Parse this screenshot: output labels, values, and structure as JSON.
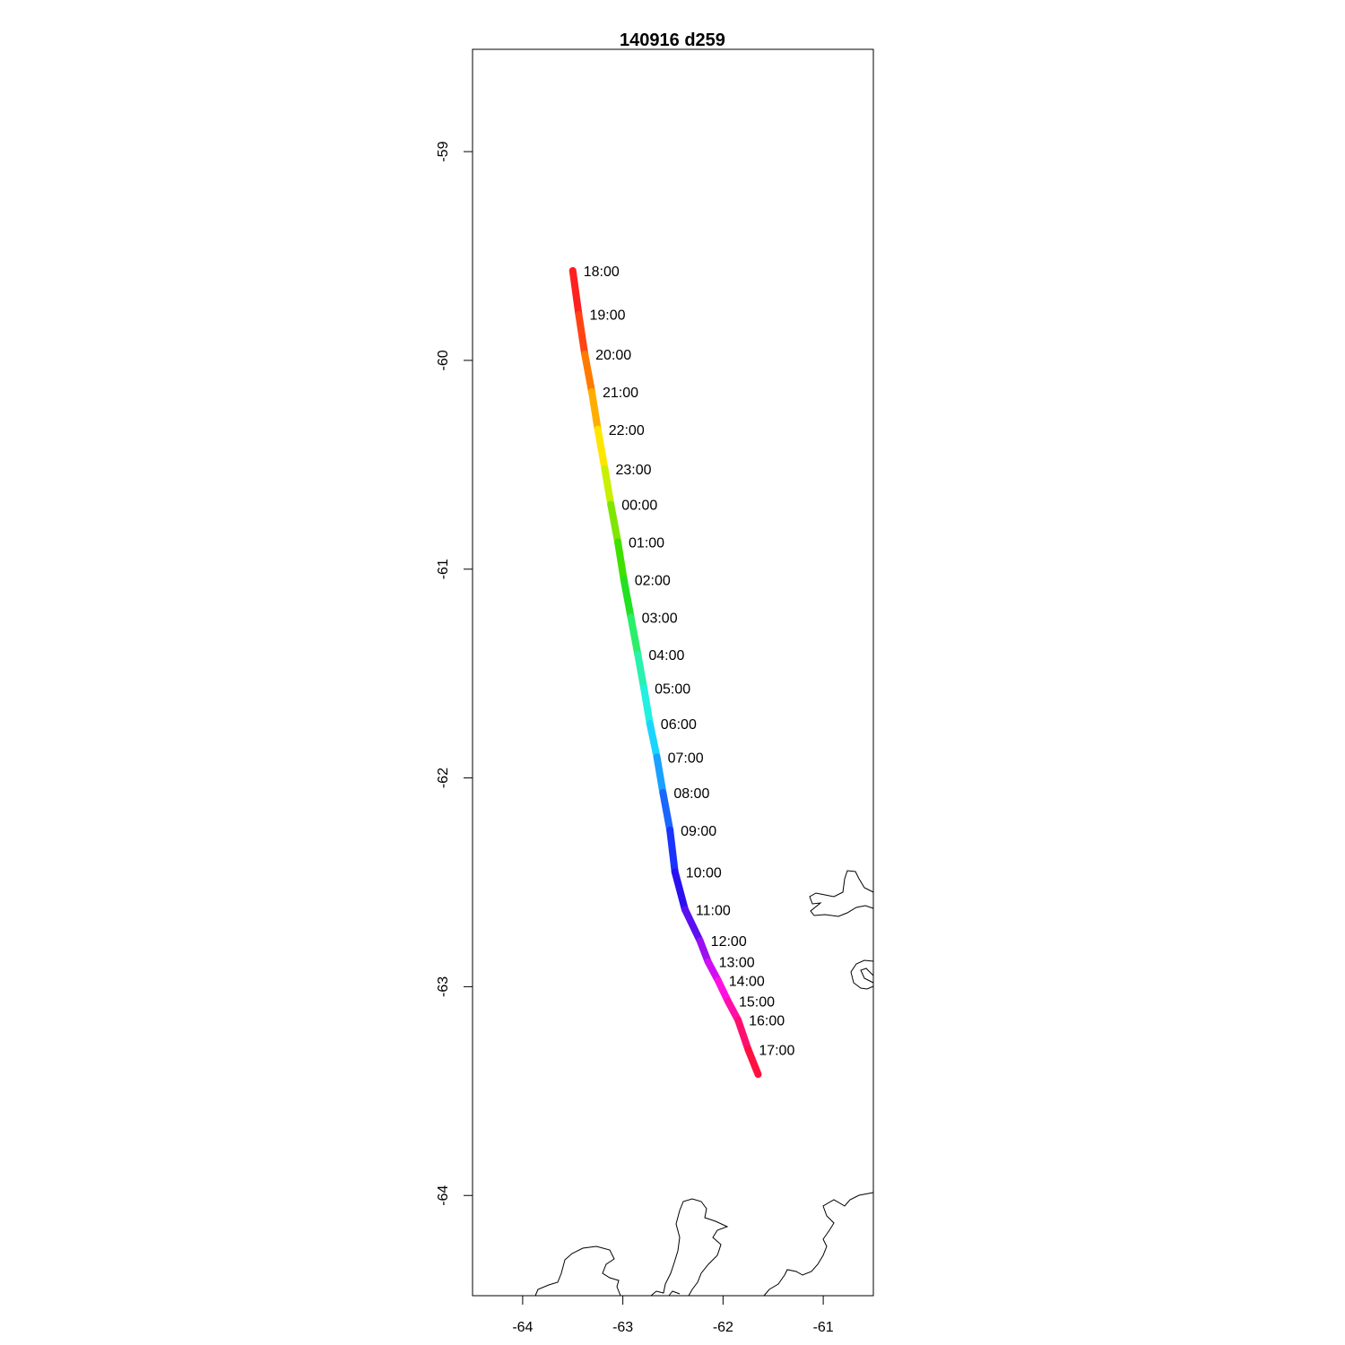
{
  "title": "140916   d259",
  "colors": {
    "background": "#ffffff",
    "frame": "#000000",
    "coastline": "#000000"
  },
  "chart_data": {
    "type": "line",
    "title": "140916   d259",
    "xlabel": "",
    "ylabel": "",
    "xlim": [
      -64.5,
      -60.5
    ],
    "ylim": [
      -64.48,
      -58.51
    ],
    "x_ticks": [
      "-64",
      "-63",
      "-62",
      "-61"
    ],
    "x_tick_values": [
      -64,
      -63,
      -62,
      -61
    ],
    "y_ticks": [
      "-59",
      "-60",
      "-61",
      "-62",
      "-63",
      "-64"
    ],
    "y_tick_values": [
      -59,
      -60,
      -61,
      -62,
      -63,
      -64
    ],
    "grid": false,
    "color_scale": "rainbow (red at 18:00 through orange, yellow, green, cyan, blue, violet, magenta back to red at 17:00)",
    "track": [
      {
        "time": "18:00",
        "lon": -63.5,
        "lat": -59.57,
        "color": "#ff2020"
      },
      {
        "time": "19:00",
        "lon": -63.44,
        "lat": -59.78,
        "color": "#ff4414"
      },
      {
        "time": "20:00",
        "lon": -63.38,
        "lat": -59.97,
        "color": "#ff7a00"
      },
      {
        "time": "21:00",
        "lon": -63.31,
        "lat": -60.15,
        "color": "#ffae00"
      },
      {
        "time": "22:00",
        "lon": -63.25,
        "lat": -60.33,
        "color": "#ffe600"
      },
      {
        "time": "23:00",
        "lon": -63.18,
        "lat": -60.52,
        "color": "#c8f000"
      },
      {
        "time": "00:00",
        "lon": -63.12,
        "lat": -60.69,
        "color": "#7ee600"
      },
      {
        "time": "01:00",
        "lon": -63.05,
        "lat": -60.87,
        "color": "#3fe000"
      },
      {
        "time": "02:00",
        "lon": -62.99,
        "lat": -61.05,
        "color": "#22e022"
      },
      {
        "time": "03:00",
        "lon": -62.92,
        "lat": -61.23,
        "color": "#2aef6a"
      },
      {
        "time": "04:00",
        "lon": -62.85,
        "lat": -61.41,
        "color": "#2af0b0"
      },
      {
        "time": "05:00",
        "lon": -62.79,
        "lat": -61.57,
        "color": "#22f0e0"
      },
      {
        "time": "06:00",
        "lon": -62.73,
        "lat": -61.74,
        "color": "#1ad6ff"
      },
      {
        "time": "07:00",
        "lon": -62.66,
        "lat": -61.9,
        "color": "#1aa0ff"
      },
      {
        "time": "08:00",
        "lon": -62.6,
        "lat": -62.07,
        "color": "#1a66ff"
      },
      {
        "time": "09:00",
        "lon": -62.53,
        "lat": -62.25,
        "color": "#1a33ff"
      },
      {
        "time": "10:00",
        "lon": -62.48,
        "lat": -62.45,
        "color": "#2a10f0"
      },
      {
        "time": "11:00",
        "lon": -62.38,
        "lat": -62.63,
        "color": "#5a10f0"
      },
      {
        "time": "12:00",
        "lon": -62.23,
        "lat": -62.78,
        "color": "#9a10f0"
      },
      {
        "time": "13:00",
        "lon": -62.15,
        "lat": -62.88,
        "color": "#d010f0"
      },
      {
        "time": "14:00",
        "lon": -62.05,
        "lat": -62.97,
        "color": "#ff10e0"
      },
      {
        "time": "15:00",
        "lon": -61.95,
        "lat": -63.07,
        "color": "#ff10a8"
      },
      {
        "time": "16:00",
        "lon": -61.85,
        "lat": -63.16,
        "color": "#ff1070"
      },
      {
        "time": "17:00",
        "lon": -61.75,
        "lat": -63.3,
        "color": "#ff1040"
      },
      {
        "time": "",
        "lon": -61.65,
        "lat": -63.42,
        "color": "#ff2020"
      }
    ]
  }
}
